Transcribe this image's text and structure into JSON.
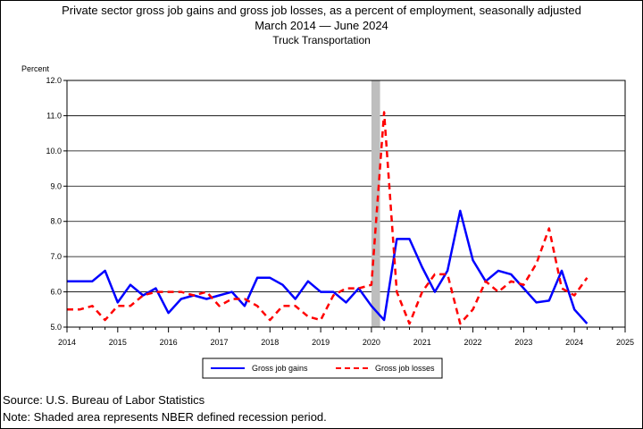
{
  "chart_data": {
    "type": "line",
    "title": "Private sector gross job gains and gross job losses, as a percent of employment, seasonally adjusted",
    "subtitle": "March 2014 — June 2024",
    "subtitle2": "Truck Transportation",
    "ylabel": "Percent",
    "xlim": [
      2014,
      2025
    ],
    "ylim": [
      5.0,
      12.0
    ],
    "x_ticks": [
      "2014",
      "2015",
      "2016",
      "2017",
      "2018",
      "2019",
      "2020",
      "2021",
      "2022",
      "2023",
      "2024",
      "2025"
    ],
    "y_ticks": [
      "5.0",
      "6.0",
      "7.0",
      "8.0",
      "9.0",
      "10.0",
      "11.0",
      "12.0"
    ],
    "grid": true,
    "legend_position": "bottom",
    "recession_shading": {
      "start": 2020.0,
      "end": 2020.17
    },
    "series": [
      {
        "name": "Gross job gains",
        "color": "#0000ff",
        "style": "solid",
        "x": [
          2014.0,
          2014.25,
          2014.5,
          2014.75,
          2015.0,
          2015.25,
          2015.5,
          2015.75,
          2016.0,
          2016.25,
          2016.5,
          2016.75,
          2017.0,
          2017.25,
          2017.5,
          2017.75,
          2018.0,
          2018.25,
          2018.5,
          2018.75,
          2019.0,
          2019.25,
          2019.5,
          2019.75,
          2020.0,
          2020.25,
          2020.5,
          2020.75,
          2021.0,
          2021.25,
          2021.5,
          2021.75,
          2022.0,
          2022.25,
          2022.5,
          2022.75,
          2023.0,
          2023.25,
          2023.5,
          2023.75,
          2024.0,
          2024.25
        ],
        "values": [
          6.3,
          6.3,
          6.3,
          6.6,
          5.7,
          6.2,
          5.9,
          6.1,
          5.4,
          5.8,
          5.9,
          5.8,
          5.9,
          6.0,
          5.6,
          6.4,
          6.4,
          6.2,
          5.8,
          6.3,
          6.0,
          6.0,
          5.7,
          6.1,
          5.6,
          5.2,
          7.5,
          7.5,
          6.7,
          6.0,
          6.6,
          8.3,
          6.9,
          6.3,
          6.6,
          6.5,
          6.1,
          5.7,
          5.75,
          6.6,
          5.5,
          5.1
        ]
      },
      {
        "name": "Gross job losses",
        "color": "#ff0000",
        "style": "dashed",
        "x": [
          2014.0,
          2014.25,
          2014.5,
          2014.75,
          2015.0,
          2015.25,
          2015.5,
          2015.75,
          2016.0,
          2016.25,
          2016.5,
          2016.75,
          2017.0,
          2017.25,
          2017.5,
          2017.75,
          2018.0,
          2018.25,
          2018.5,
          2018.75,
          2019.0,
          2019.25,
          2019.5,
          2019.75,
          2020.0,
          2020.25,
          2020.5,
          2020.75,
          2021.0,
          2021.25,
          2021.5,
          2021.75,
          2022.0,
          2022.25,
          2022.5,
          2022.75,
          2023.0,
          2023.25,
          2023.5,
          2023.75,
          2024.0,
          2024.25
        ],
        "values": [
          5.5,
          5.5,
          5.6,
          5.2,
          5.6,
          5.6,
          5.9,
          6.0,
          6.0,
          6.0,
          5.9,
          6.0,
          5.6,
          5.8,
          5.8,
          5.6,
          5.2,
          5.6,
          5.6,
          5.3,
          5.2,
          5.9,
          6.1,
          6.1,
          6.2,
          11.1,
          6.0,
          5.1,
          6.0,
          6.5,
          6.5,
          5.1,
          5.5,
          6.3,
          6.0,
          6.3,
          6.2,
          6.8,
          7.8,
          6.1,
          5.9,
          6.4
        ]
      }
    ]
  },
  "footer": {
    "source": "Source: U.S. Bureau of Labor Statistics",
    "note": "Note: Shaded area represents NBER defined recession period."
  }
}
